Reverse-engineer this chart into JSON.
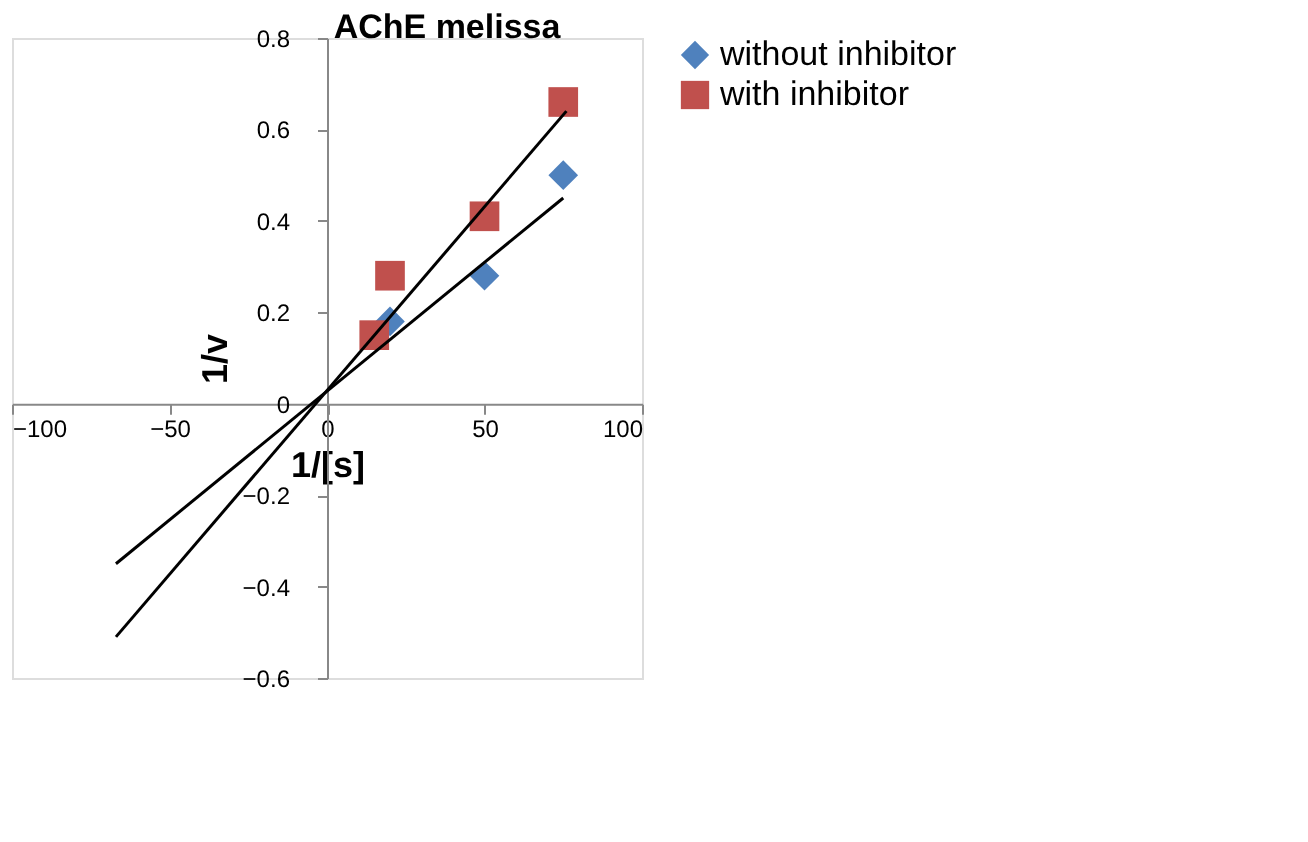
{
  "chart_data": {
    "type": "scatter",
    "title": "AChE  melissa",
    "xlabel": "1/[s]",
    "ylabel": "1/v",
    "xlim": [
      -100,
      100
    ],
    "xticks": [
      -100,
      -50,
      0,
      50,
      100
    ],
    "ylim": [
      -0.6,
      0.8
    ],
    "yticks": [
      -0.6,
      -0.4,
      -0.2,
      0,
      0.2,
      0.4,
      0.6,
      0.8
    ],
    "grid": false,
    "legend": "right",
    "series": [
      {
        "name": "without inhibitor",
        "type": "scatter",
        "marker": "diamond",
        "color": "#4f81bd",
        "x": [
          20,
          50,
          75
        ],
        "values": [
          0.18,
          0.28,
          0.5
        ]
      },
      {
        "name": "with inhibitor",
        "type": "scatter",
        "marker": "square",
        "color": "#c0504d",
        "x": [
          15,
          20,
          50,
          75
        ],
        "values": [
          0.15,
          0.28,
          0.41,
          0.66
        ]
      },
      {
        "type": "line",
        "color": "#000000",
        "x": [
          -67,
          75
        ],
        "values": [
          -0.35,
          0.45
        ]
      },
      {
        "type": "line",
        "color": "#000000",
        "x": [
          -67,
          76
        ],
        "values": [
          -0.51,
          0.64
        ]
      }
    ]
  }
}
